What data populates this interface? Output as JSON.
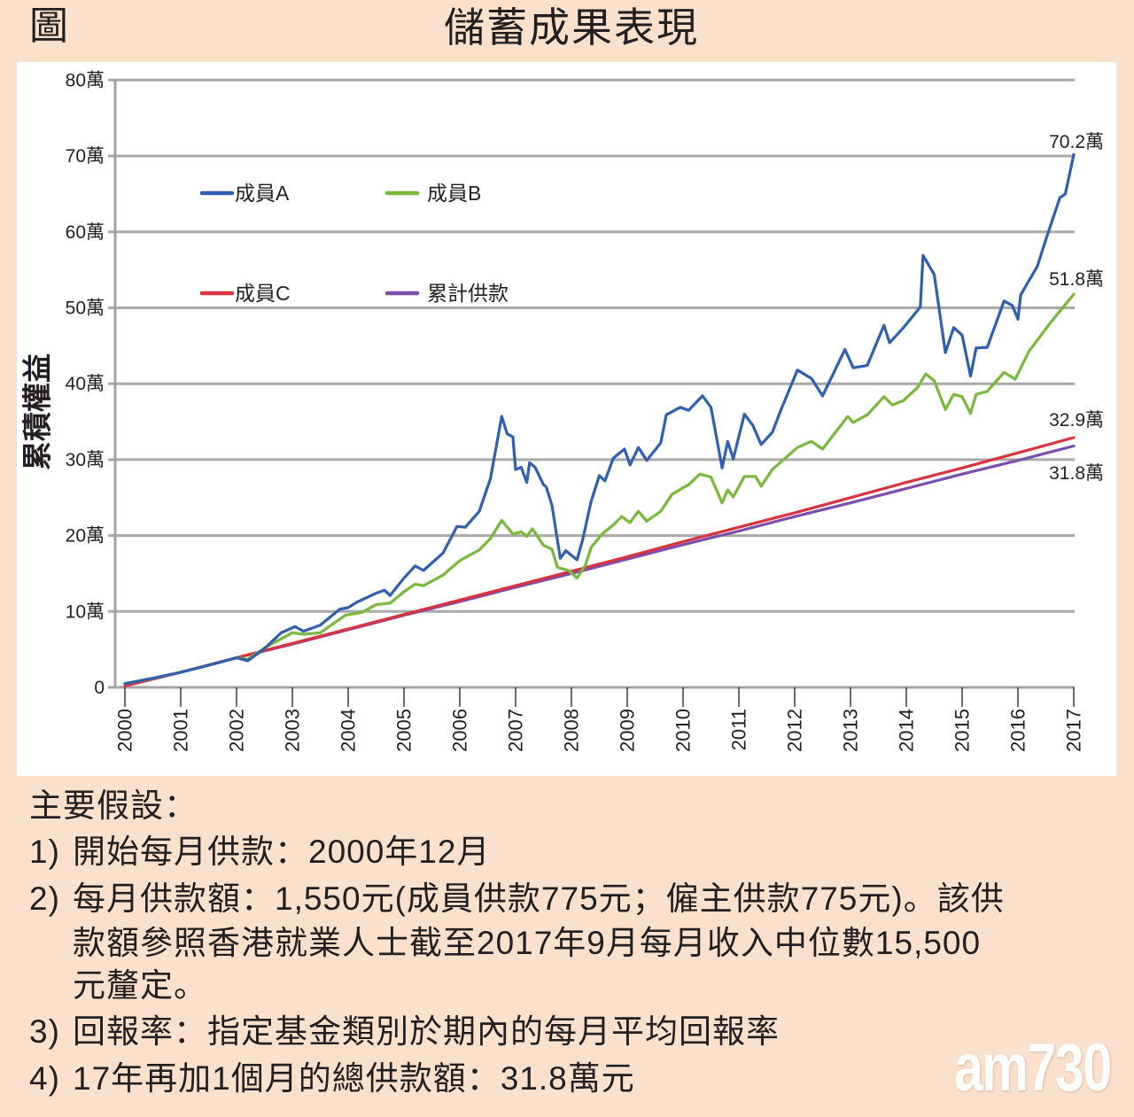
{
  "header": {
    "figure_label": "圖"
  },
  "chart_data": {
    "type": "line",
    "title": "儲蓄成果表現",
    "xlabel": "",
    "ylabel": "累積權益",
    "y_unit": "萬",
    "xlim": [
      2000,
      2017
    ],
    "ylim": [
      0,
      80
    ],
    "grid": true,
    "x_ticks": [
      "2000",
      "2001",
      "2002",
      "2003",
      "2004",
      "2005",
      "2006",
      "2007",
      "2008",
      "2009",
      "2010",
      "2011",
      "2012",
      "2013",
      "2014",
      "2015",
      "2016",
      "2017"
    ],
    "y_ticks": [
      {
        "value": 0,
        "label": "0"
      },
      {
        "value": 10,
        "label": "10萬"
      },
      {
        "value": 20,
        "label": "20萬"
      },
      {
        "value": 30,
        "label": "30萬"
      },
      {
        "value": 40,
        "label": "40萬"
      },
      {
        "value": 50,
        "label": "50萬"
      },
      {
        "value": 60,
        "label": "60萬"
      },
      {
        "value": 70,
        "label": "70萬"
      },
      {
        "value": 80,
        "label": "80萬"
      }
    ],
    "legend": {
      "placement": "top-left"
    },
    "series": [
      {
        "name": "成員A",
        "color": "#2f5fae",
        "end_label": "70.2萬",
        "points": [
          [
            2000,
            0.5
          ],
          [
            2000.5,
            1.2
          ],
          [
            2001,
            2.0
          ],
          [
            2001.5,
            2.9
          ],
          [
            2002,
            3.9
          ],
          [
            2002.2,
            3.5
          ],
          [
            2002.5,
            5.1
          ],
          [
            2002.8,
            7.2
          ],
          [
            2003.05,
            8.0
          ],
          [
            2003.2,
            7.4
          ],
          [
            2003.5,
            8.2
          ],
          [
            2003.85,
            10.3
          ],
          [
            2004,
            10.5
          ],
          [
            2004.15,
            11.2
          ],
          [
            2004.5,
            12.4
          ],
          [
            2004.65,
            12.8
          ],
          [
            2004.75,
            12.1
          ],
          [
            2005,
            14.4
          ],
          [
            2005.2,
            16.0
          ],
          [
            2005.35,
            15.4
          ],
          [
            2005.7,
            17.7
          ],
          [
            2005.95,
            21.2
          ],
          [
            2006.1,
            21.1
          ],
          [
            2006.35,
            23.2
          ],
          [
            2006.55,
            27.5
          ],
          [
            2006.75,
            35.7
          ],
          [
            2006.85,
            33.4
          ],
          [
            2006.95,
            33.0
          ],
          [
            2007,
            28.7
          ],
          [
            2007.1,
            29.0
          ],
          [
            2007.2,
            27.0
          ],
          [
            2007.25,
            29.6
          ],
          [
            2007.35,
            29.0
          ],
          [
            2007.5,
            26.7
          ],
          [
            2007.55,
            26.4
          ],
          [
            2007.65,
            24.0
          ],
          [
            2007.8,
            17.0
          ],
          [
            2007.9,
            18.0
          ],
          [
            2008.1,
            16.8
          ],
          [
            2008.2,
            19.4
          ],
          [
            2008.35,
            24.4
          ],
          [
            2008.5,
            27.9
          ],
          [
            2008.6,
            27.2
          ],
          [
            2008.75,
            30.2
          ],
          [
            2008.95,
            31.4
          ],
          [
            2009.05,
            29.3
          ],
          [
            2009.2,
            31.6
          ],
          [
            2009.35,
            29.9
          ],
          [
            2009.6,
            32.2
          ],
          [
            2009.7,
            35.9
          ],
          [
            2009.95,
            36.9
          ],
          [
            2010.1,
            36.5
          ],
          [
            2010.35,
            38.4
          ],
          [
            2010.5,
            36.9
          ],
          [
            2010.7,
            28.9
          ],
          [
            2010.8,
            32.4
          ],
          [
            2010.9,
            30.1
          ],
          [
            2011.1,
            36.0
          ],
          [
            2011.25,
            34.5
          ],
          [
            2011.4,
            32.0
          ],
          [
            2011.6,
            33.6
          ],
          [
            2011.75,
            36.5
          ],
          [
            2012.05,
            41.8
          ],
          [
            2012.3,
            40.7
          ],
          [
            2012.5,
            38.4
          ],
          [
            2012.9,
            44.5
          ],
          [
            2013.05,
            42.1
          ],
          [
            2013.3,
            42.4
          ],
          [
            2013.6,
            47.7
          ],
          [
            2013.7,
            45.4
          ],
          [
            2013.95,
            47.4
          ],
          [
            2014.25,
            50.1
          ],
          [
            2014.3,
            56.9
          ],
          [
            2014.5,
            54.4
          ],
          [
            2014.7,
            44.1
          ],
          [
            2014.85,
            47.4
          ],
          [
            2015,
            46.4
          ],
          [
            2015.15,
            41.0
          ],
          [
            2015.25,
            44.7
          ],
          [
            2015.45,
            44.8
          ],
          [
            2015.75,
            50.9
          ],
          [
            2015.9,
            50.3
          ],
          [
            2016,
            48.5
          ],
          [
            2016.05,
            51.7
          ],
          [
            2016.35,
            55.5
          ],
          [
            2016.5,
            59.0
          ],
          [
            2016.75,
            64.5
          ],
          [
            2016.85,
            65.0
          ],
          [
            2017,
            70.2
          ]
        ]
      },
      {
        "name": "成員B",
        "color": "#78b83a",
        "end_label": "51.8萬",
        "points": [
          [
            2000,
            0.5
          ],
          [
            2000.5,
            1.2
          ],
          [
            2001,
            2.0
          ],
          [
            2001.5,
            2.9
          ],
          [
            2002,
            3.9
          ],
          [
            2002.2,
            3.7
          ],
          [
            2002.5,
            5.2
          ],
          [
            2003,
            7.2
          ],
          [
            2003.2,
            7.0
          ],
          [
            2003.5,
            7.2
          ],
          [
            2003.95,
            9.5
          ],
          [
            2004.25,
            9.9
          ],
          [
            2004.5,
            10.9
          ],
          [
            2004.75,
            11.1
          ],
          [
            2005,
            12.6
          ],
          [
            2005.2,
            13.6
          ],
          [
            2005.35,
            13.4
          ],
          [
            2005.7,
            14.8
          ],
          [
            2006,
            16.7
          ],
          [
            2006.35,
            18.1
          ],
          [
            2006.55,
            19.6
          ],
          [
            2006.75,
            22.0
          ],
          [
            2006.95,
            20.2
          ],
          [
            2007.1,
            20.5
          ],
          [
            2007.2,
            19.9
          ],
          [
            2007.3,
            20.9
          ],
          [
            2007.5,
            18.7
          ],
          [
            2007.65,
            18.2
          ],
          [
            2007.75,
            15.8
          ],
          [
            2007.95,
            15.4
          ],
          [
            2008.1,
            14.4
          ],
          [
            2008.25,
            16.1
          ],
          [
            2008.35,
            18.4
          ],
          [
            2008.55,
            20.2
          ],
          [
            2008.75,
            21.4
          ],
          [
            2008.9,
            22.5
          ],
          [
            2009.05,
            21.7
          ],
          [
            2009.2,
            23.2
          ],
          [
            2009.35,
            21.9
          ],
          [
            2009.6,
            23.2
          ],
          [
            2009.8,
            25.4
          ],
          [
            2010,
            26.3
          ],
          [
            2010.1,
            26.7
          ],
          [
            2010.3,
            28.1
          ],
          [
            2010.5,
            27.7
          ],
          [
            2010.7,
            24.3
          ],
          [
            2010.8,
            26.0
          ],
          [
            2010.9,
            25.1
          ],
          [
            2011.1,
            27.8
          ],
          [
            2011.3,
            27.8
          ],
          [
            2011.4,
            26.5
          ],
          [
            2011.6,
            28.7
          ],
          [
            2012.05,
            31.6
          ],
          [
            2012.3,
            32.4
          ],
          [
            2012.5,
            31.4
          ],
          [
            2012.95,
            35.7
          ],
          [
            2013.05,
            34.9
          ],
          [
            2013.3,
            35.9
          ],
          [
            2013.6,
            38.3
          ],
          [
            2013.75,
            37.2
          ],
          [
            2013.95,
            37.8
          ],
          [
            2014.2,
            39.5
          ],
          [
            2014.35,
            41.3
          ],
          [
            2014.5,
            40.4
          ],
          [
            2014.7,
            36.6
          ],
          [
            2014.85,
            38.6
          ],
          [
            2015,
            38.3
          ],
          [
            2015.15,
            36.1
          ],
          [
            2015.25,
            38.6
          ],
          [
            2015.45,
            39.0
          ],
          [
            2015.75,
            41.5
          ],
          [
            2015.95,
            40.6
          ],
          [
            2016.2,
            44.3
          ],
          [
            2016.6,
            48.2
          ],
          [
            2017,
            51.8
          ]
        ]
      },
      {
        "name": "成員C",
        "color": "#d9333f",
        "end_label": "32.9萬",
        "points": [
          [
            2000,
            0.2
          ],
          [
            2001,
            2.0
          ],
          [
            2002,
            3.9
          ],
          [
            2003,
            5.8
          ],
          [
            2004,
            7.7
          ],
          [
            2005,
            9.6
          ],
          [
            2006,
            11.5
          ],
          [
            2007,
            13.4
          ],
          [
            2008,
            15.3
          ],
          [
            2009,
            17.2
          ],
          [
            2010,
            19.2
          ],
          [
            2011,
            21.1
          ],
          [
            2012,
            23.0
          ],
          [
            2013,
            25.0
          ],
          [
            2014,
            27.0
          ],
          [
            2015,
            28.9
          ],
          [
            2016,
            30.9
          ],
          [
            2017,
            32.9
          ]
        ]
      },
      {
        "name": "累計供款",
        "color": "#7b4db0",
        "end_label": "31.8萬",
        "points": [
          [
            2000,
            0.2
          ],
          [
            2001,
            2.0
          ],
          [
            2002,
            3.9
          ],
          [
            2003,
            5.7
          ],
          [
            2004,
            7.6
          ],
          [
            2005,
            9.5
          ],
          [
            2006,
            11.3
          ],
          [
            2007,
            13.2
          ],
          [
            2008,
            15.0
          ],
          [
            2009,
            16.9
          ],
          [
            2010,
            18.8
          ],
          [
            2011,
            20.6
          ],
          [
            2012,
            22.5
          ],
          [
            2013,
            24.3
          ],
          [
            2014,
            26.2
          ],
          [
            2015,
            28.1
          ],
          [
            2016,
            29.9
          ],
          [
            2017,
            31.8
          ]
        ]
      }
    ]
  },
  "notes": {
    "heading": "主要假設：",
    "items": [
      {
        "number": "1)",
        "lines": [
          "開始每月供款：2000年12月"
        ]
      },
      {
        "number": "2)",
        "lines": [
          "每月供款額：1,550元(成員供款775元；僱主供款775元)。該供",
          "款額參照香港就業人士截至2017年9月每月收入中位數15,500",
          "元釐定。"
        ]
      },
      {
        "number": "3)",
        "lines": [
          "回報率：指定基金類別於期內的每月平均回報率"
        ]
      },
      {
        "number": "4)",
        "lines": [
          "17年再加1個月的總供款額：31.8萬元"
        ]
      }
    ]
  },
  "watermark": {
    "text": "am730"
  }
}
